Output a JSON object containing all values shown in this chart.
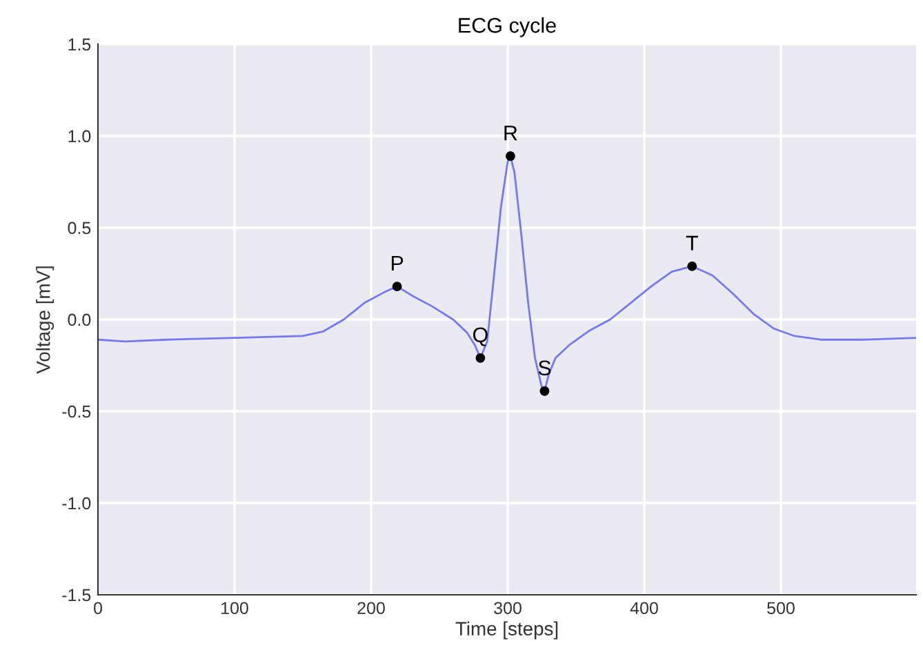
{
  "chart_data": {
    "type": "line",
    "title": "ECG cycle",
    "xlabel": "Time [steps]",
    "ylabel": "Voltage [mV]",
    "series": [
      {
        "color": "#7777f2",
        "x": [
          0,
          20,
          50,
          100,
          150,
          165,
          180,
          195,
          210,
          219,
          230,
          245,
          260,
          270,
          276,
          280,
          285,
          290,
          295,
          300,
          302,
          305,
          310,
          315,
          320,
          325,
          327,
          330,
          335,
          345,
          360,
          375,
          390,
          405,
          420,
          435,
          450,
          465,
          480,
          495,
          510,
          530,
          560,
          599
        ],
        "values": [
          -0.11,
          -0.12,
          -0.11,
          -0.1,
          -0.09,
          -0.065,
          0.0,
          0.09,
          0.15,
          0.18,
          0.13,
          0.07,
          0.0,
          -0.07,
          -0.14,
          -0.21,
          -0.12,
          0.24,
          0.61,
          0.86,
          0.89,
          0.8,
          0.46,
          0.09,
          -0.21,
          -0.37,
          -0.39,
          -0.3,
          -0.21,
          -0.14,
          -0.06,
          0.0,
          0.09,
          0.18,
          0.26,
          0.29,
          0.24,
          0.14,
          0.03,
          -0.05,
          -0.09,
          -0.11,
          -0.11,
          -0.1
        ]
      },
      {
        "type": "scatter",
        "marker": "circle",
        "color": "#000000",
        "x": [
          219,
          280,
          302,
          327,
          435
        ],
        "values": [
          0.18,
          -0.21,
          0.89,
          -0.39,
          0.29
        ]
      }
    ],
    "annotations": [
      {
        "text": "P",
        "x": 219,
        "y": 0.18
      },
      {
        "text": "Q",
        "x": 280,
        "y": -0.21
      },
      {
        "text": "R",
        "x": 302,
        "y": 0.89
      },
      {
        "text": "S",
        "x": 327,
        "y": -0.39
      },
      {
        "text": "T",
        "x": 435,
        "y": 0.29
      }
    ],
    "xlim": [
      0,
      599
    ],
    "ylim": [
      -1.5,
      1.5
    ],
    "xticks": [
      0,
      100,
      200,
      300,
      400,
      500
    ],
    "yticks": [
      -1.5,
      {
        "value": -1,
        "label": "-1.0"
      },
      -0.5,
      {
        "value": 0,
        "label": "0.0"
      },
      0.5,
      {
        "value": 1,
        "label": "1.0"
      },
      1.5
    ],
    "grid": true,
    "line_style": "solid"
  }
}
